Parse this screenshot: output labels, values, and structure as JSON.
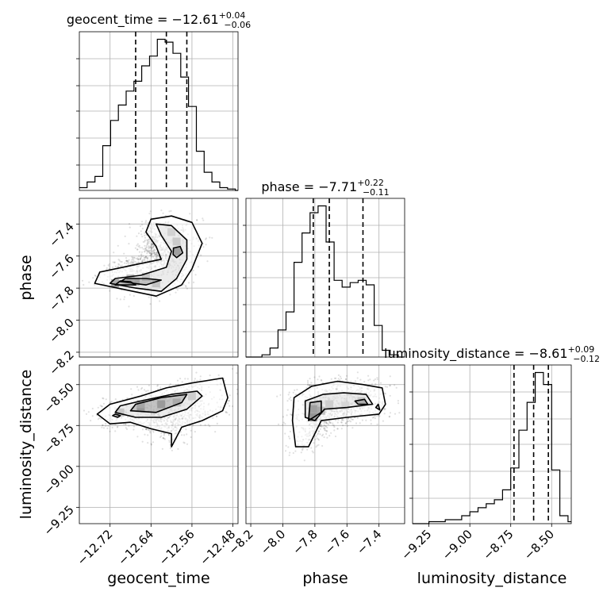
{
  "chart_data": {
    "type": "corner",
    "parameters": [
      "geocent_time",
      "phase",
      "luminosity_distance"
    ],
    "axis_labels": {
      "x": [
        "geocent_time",
        "phase",
        "luminosity_distance"
      ],
      "y": [
        "phase",
        "luminosity_distance"
      ]
    },
    "ranges": {
      "geocent_time": [
        -12.78,
        -12.47
      ],
      "phase": [
        -8.23,
        -7.24
      ],
      "luminosity_distance": [
        -9.35,
        -8.38
      ]
    },
    "tick_labels": {
      "geocent_time": [
        {
          "value": -12.72,
          "label": "−12.72"
        },
        {
          "value": -12.64,
          "label": "−12.64"
        },
        {
          "value": -12.56,
          "label": "−12.56"
        },
        {
          "value": -12.48,
          "label": "−12.48"
        }
      ],
      "phase": [
        {
          "value": -8.2,
          "label": "−8.2"
        },
        {
          "value": -8.0,
          "label": "−8.0"
        },
        {
          "value": -7.8,
          "label": "−7.8"
        },
        {
          "value": -7.6,
          "label": "−7.6"
        },
        {
          "value": -7.4,
          "label": "−7.4"
        }
      ],
      "luminosity_distance": [
        {
          "value": -9.25,
          "label": "−9.25"
        },
        {
          "value": -9.0,
          "label": "−9.00"
        },
        {
          "value": -8.75,
          "label": "−8.75"
        },
        {
          "value": -8.5,
          "label": "−8.50"
        }
      ]
    },
    "grid": true,
    "histograms": [
      {
        "param": "geocent_time",
        "title": {
          "name": "geocent_time",
          "median": "−12.61",
          "plus": "+0.04",
          "minus": "−0.06"
        },
        "quantiles": [
          -12.67,
          -12.61,
          -12.57
        ],
        "bin_edges": [
          -12.78,
          -12.7648,
          -12.7495,
          -12.7343,
          -12.719,
          -12.7038,
          -12.6886,
          -12.6733,
          -12.6581,
          -12.6429,
          -12.6276,
          -12.6124,
          -12.5971,
          -12.5819,
          -12.5667,
          -12.5514,
          -12.5362,
          -12.521,
          -12.5057,
          -12.4905,
          -12.4752,
          -12.47
        ],
        "counts": [
          2,
          6,
          10,
          32,
          50,
          61,
          71,
          78,
          89,
          96,
          108,
          106,
          98,
          81,
          60,
          28,
          13,
          6,
          2,
          1,
          0
        ]
      },
      {
        "param": "phase",
        "title": {
          "name": "phase",
          "median": "−7.71",
          "plus": "+0.22",
          "minus": "−0.11"
        },
        "quantiles": [
          -7.81,
          -7.71,
          -7.5
        ],
        "bin_edges": [
          -8.23,
          -8.18,
          -8.13,
          -8.08,
          -8.03,
          -7.98,
          -7.93,
          -7.88,
          -7.83,
          -7.78,
          -7.73,
          -7.68,
          -7.63,
          -7.58,
          -7.53,
          -7.48,
          -7.43,
          -7.38,
          -7.33,
          -7.28,
          -7.24
        ],
        "counts": [
          0,
          0,
          1,
          4,
          12,
          20,
          42,
          55,
          64,
          67,
          51,
          34,
          31,
          33,
          34,
          32,
          14,
          3,
          1,
          0
        ]
      },
      {
        "param": "luminosity_distance",
        "title": {
          "name": "luminosity_distance",
          "median": "−8.61",
          "plus": "+0.09",
          "minus": "−0.12"
        },
        "quantiles": [
          -8.73,
          -8.61,
          -8.52
        ],
        "bin_edges": [
          -9.35,
          -9.3,
          -9.25,
          -9.2,
          -9.15,
          -9.1,
          -9.05,
          -9.0,
          -8.95,
          -8.9,
          -8.85,
          -8.8,
          -8.75,
          -8.7,
          -8.65,
          -8.6,
          -8.55,
          -8.5,
          -8.45,
          -8.4,
          -8.38
        ],
        "counts": [
          0,
          0,
          1,
          1,
          2,
          2,
          4,
          6,
          8,
          10,
          12,
          17,
          28,
          47,
          61,
          76,
          70,
          27,
          4,
          1
        ]
      }
    ],
    "scatter_panels": [
      {
        "x": "geocent_time",
        "y": "phase",
        "samples": 5000,
        "contours": [
          [
            [
              -12.75,
              -7.77
            ],
            [
              -12.69,
              -7.81
            ],
            [
              -12.63,
              -7.85
            ],
            [
              -12.58,
              -7.78
            ],
            [
              -12.56,
              -7.68
            ],
            [
              -12.54,
              -7.52
            ],
            [
              -12.56,
              -7.39
            ],
            [
              -12.6,
              -7.35
            ],
            [
              -12.64,
              -7.37
            ],
            [
              -12.65,
              -7.45
            ],
            [
              -12.63,
              -7.54
            ],
            [
              -12.62,
              -7.62
            ],
            [
              -12.68,
              -7.66
            ],
            [
              -12.74,
              -7.7
            ]
          ],
          [
            [
              -12.72,
              -7.77
            ],
            [
              -12.67,
              -7.8
            ],
            [
              -12.62,
              -7.82
            ],
            [
              -12.59,
              -7.74
            ],
            [
              -12.57,
              -7.62
            ],
            [
              -12.57,
              -7.5
            ],
            [
              -12.6,
              -7.41
            ],
            [
              -12.63,
              -7.4
            ],
            [
              -12.62,
              -7.47
            ],
            [
              -12.6,
              -7.57
            ],
            [
              -12.61,
              -7.67
            ],
            [
              -12.66,
              -7.72
            ],
            [
              -12.71,
              -7.74
            ]
          ],
          [
            [
              -12.7,
              -7.76
            ],
            [
              -12.65,
              -7.78
            ],
            [
              -12.62,
              -7.75
            ],
            [
              -12.65,
              -7.74
            ],
            [
              -12.69,
              -7.74
            ]
          ],
          [
            [
              -12.596,
              -7.55
            ],
            [
              -12.583,
              -7.54
            ],
            [
              -12.578,
              -7.58
            ],
            [
              -12.59,
              -7.61
            ],
            [
              -12.597,
              -7.59
            ]
          ],
          [
            [
              -12.71,
              -7.78
            ],
            [
              -12.67,
              -7.78
            ],
            [
              -12.68,
              -7.76
            ],
            [
              -12.7,
              -7.755
            ]
          ]
        ],
        "density_cells": [
          {
            "x": -12.71,
            "y": -7.77,
            "level": 0.85
          },
          {
            "x": -12.67,
            "y": -7.76,
            "level": 0.7
          },
          {
            "x": -12.63,
            "y": -7.77,
            "level": 0.55
          },
          {
            "x": -12.59,
            "y": -7.57,
            "level": 0.75
          },
          {
            "x": -12.59,
            "y": -7.51,
            "level": 0.45
          },
          {
            "x": -12.6,
            "y": -7.45,
            "level": 0.35
          },
          {
            "x": -12.68,
            "y": -7.74,
            "level": 0.6
          },
          {
            "x": -12.65,
            "y": -7.73,
            "level": 0.5
          }
        ]
      },
      {
        "x": "geocent_time",
        "y": "luminosity_distance",
        "samples": 5000,
        "contours": [
          [
            [
              -12.745,
              -8.68
            ],
            [
              -12.72,
              -8.74
            ],
            [
              -12.68,
              -8.73
            ],
            [
              -12.64,
              -8.77
            ],
            [
              -12.6,
              -8.8
            ],
            [
              -12.6,
              -8.88
            ],
            [
              -12.58,
              -8.76
            ],
            [
              -12.54,
              -8.72
            ],
            [
              -12.5,
              -8.66
            ],
            [
              -12.49,
              -8.58
            ],
            [
              -12.5,
              -8.46
            ],
            [
              -12.56,
              -8.49
            ],
            [
              -12.61,
              -8.52
            ],
            [
              -12.66,
              -8.57
            ],
            [
              -12.72,
              -8.62
            ]
          ],
          [
            [
              -12.71,
              -8.67
            ],
            [
              -12.67,
              -8.7
            ],
            [
              -12.62,
              -8.7
            ],
            [
              -12.57,
              -8.65
            ],
            [
              -12.54,
              -8.57
            ],
            [
              -12.55,
              -8.54
            ],
            [
              -12.6,
              -8.56
            ],
            [
              -12.66,
              -8.6
            ],
            [
              -12.7,
              -8.63
            ]
          ],
          [
            [
              -12.68,
              -8.66
            ],
            [
              -12.63,
              -8.67
            ],
            [
              -12.58,
              -8.61
            ],
            [
              -12.57,
              -8.56
            ],
            [
              -12.62,
              -8.58
            ],
            [
              -12.67,
              -8.62
            ]
          ],
          [
            [
              -12.71,
              -8.68
            ],
            [
              -12.7,
              -8.69
            ],
            [
              -12.705,
              -8.7
            ],
            [
              -12.715,
              -8.69
            ]
          ]
        ],
        "density_cells": [
          {
            "x": -12.66,
            "y": -8.64,
            "level": 0.9
          },
          {
            "x": -12.62,
            "y": -8.62,
            "level": 0.85
          },
          {
            "x": -12.66,
            "y": -8.62,
            "level": 0.6
          },
          {
            "x": -12.59,
            "y": -8.61,
            "level": 0.55
          },
          {
            "x": -12.7,
            "y": -8.67,
            "level": 0.5
          },
          {
            "x": -12.56,
            "y": -8.57,
            "level": 0.4
          }
        ]
      },
      {
        "x": "phase",
        "y": "luminosity_distance",
        "samples": 5000,
        "contours": [
          [
            [
              -7.92,
              -8.88
            ],
            [
              -7.94,
              -8.72
            ],
            [
              -7.93,
              -8.58
            ],
            [
              -7.82,
              -8.51
            ],
            [
              -7.66,
              -8.48
            ],
            [
              -7.5,
              -8.5
            ],
            [
              -7.38,
              -8.52
            ],
            [
              -7.36,
              -8.62
            ],
            [
              -7.4,
              -8.68
            ],
            [
              -7.6,
              -8.7
            ],
            [
              -7.76,
              -8.72
            ],
            [
              -7.84,
              -8.88
            ]
          ],
          [
            [
              -7.86,
              -8.7
            ],
            [
              -7.86,
              -8.6
            ],
            [
              -7.75,
              -8.56
            ],
            [
              -7.62,
              -8.55
            ],
            [
              -7.48,
              -8.56
            ],
            [
              -7.44,
              -8.62
            ],
            [
              -7.6,
              -8.64
            ],
            [
              -7.74,
              -8.65
            ],
            [
              -7.8,
              -8.72
            ]
          ],
          [
            [
              -7.84,
              -8.72
            ],
            [
              -7.83,
              -8.61
            ],
            [
              -7.76,
              -8.6
            ],
            [
              -7.76,
              -8.67
            ]
          ],
          [
            [
              -7.55,
              -8.6
            ],
            [
              -7.49,
              -8.59
            ],
            [
              -7.47,
              -8.62
            ],
            [
              -7.53,
              -8.62
            ]
          ],
          [
            [
              -7.42,
              -8.64
            ],
            [
              -7.405,
              -8.62
            ],
            [
              -7.395,
              -8.655
            ]
          ]
        ],
        "density_cells": [
          {
            "x": -7.81,
            "y": -8.7,
            "level": 0.95
          },
          {
            "x": -7.81,
            "y": -8.65,
            "level": 0.75
          },
          {
            "x": -7.76,
            "y": -8.66,
            "level": 0.55
          },
          {
            "x": -7.71,
            "y": -8.62,
            "level": 0.4
          },
          {
            "x": -7.51,
            "y": -8.6,
            "level": 0.45
          },
          {
            "x": -7.61,
            "y": -8.63,
            "level": 0.3
          }
        ]
      }
    ]
  }
}
